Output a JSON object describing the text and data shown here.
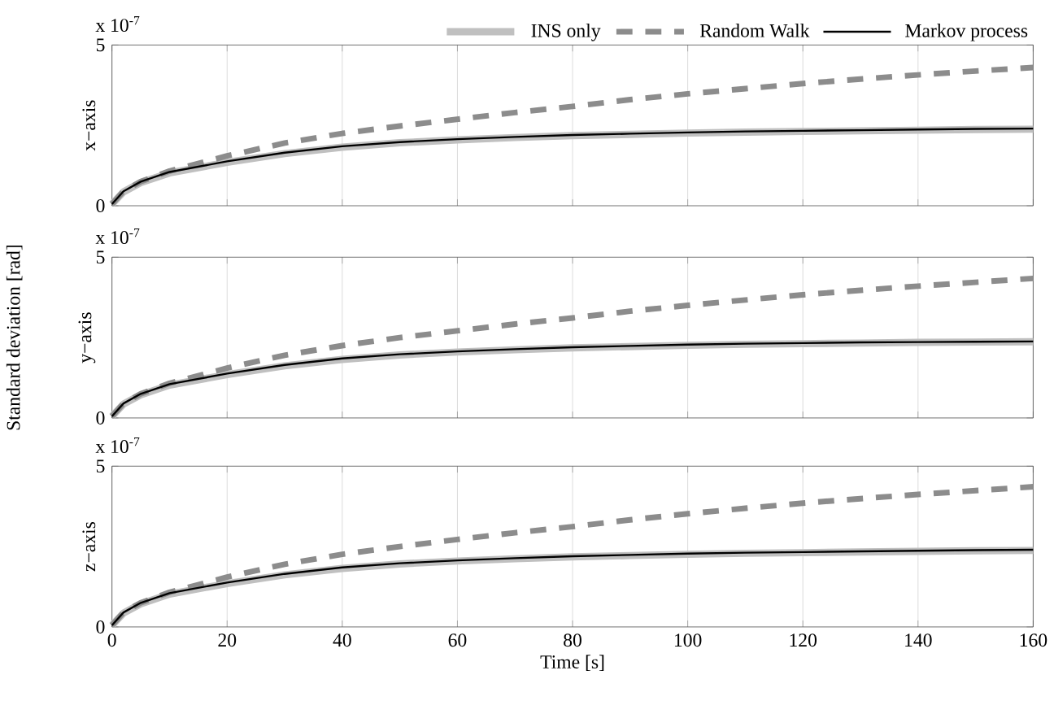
{
  "chart_data": [
    {
      "type": "line",
      "ylabel": "x−axis",
      "annotations": [
        "x 10$^{-7}$"
      ],
      "x": [
        0,
        2,
        5,
        10,
        20,
        30,
        40,
        50,
        60,
        70,
        80,
        90,
        100,
        110,
        120,
        130,
        140,
        150,
        160
      ],
      "xlim": [
        0,
        160
      ],
      "xticks": [
        0,
        20,
        40,
        60,
        80,
        100,
        120,
        140,
        160
      ],
      "ylim": [
        0,
        5
      ],
      "yticks": [
        0,
        5
      ],
      "grid": "x",
      "legend": "top",
      "tick_labels": "y",
      "series": [
        {
          "name": "INS only",
          "color": "#c0c0c0",
          "line_style": "solid",
          "values": [
            0.05,
            0.43,
            0.72,
            1.02,
            1.35,
            1.62,
            1.82,
            1.96,
            2.05,
            2.12,
            2.18,
            2.22,
            2.26,
            2.29,
            2.31,
            2.33,
            2.35,
            2.37,
            2.38
          ]
        },
        {
          "name": "Random Walk",
          "color": "#8c8c8c",
          "line_style": "dashed",
          "values": [
            0.05,
            0.45,
            0.75,
            1.08,
            1.55,
            1.95,
            2.25,
            2.48,
            2.69,
            2.9,
            3.09,
            3.3,
            3.48,
            3.64,
            3.8,
            3.94,
            4.07,
            4.19,
            4.3
          ]
        },
        {
          "name": "Markov process",
          "color": "#000000",
          "line_style": "solid",
          "values": [
            0.05,
            0.45,
            0.75,
            1.05,
            1.38,
            1.65,
            1.85,
            1.98,
            2.07,
            2.14,
            2.2,
            2.24,
            2.28,
            2.31,
            2.33,
            2.35,
            2.37,
            2.39,
            2.4
          ]
        }
      ]
    },
    {
      "type": "line",
      "ylabel": "y−axis",
      "annotations": [
        "x 10$^{-7}$",
        "Standard deviation [rad]"
      ],
      "x": [
        0,
        2,
        5,
        10,
        20,
        30,
        40,
        50,
        60,
        70,
        80,
        90,
        100,
        110,
        120,
        130,
        140,
        150,
        160
      ],
      "xlim": [
        0,
        160
      ],
      "xticks": [
        0,
        20,
        40,
        60,
        80,
        100,
        120,
        140,
        160
      ],
      "ylim": [
        0,
        5
      ],
      "yticks": [
        0,
        5
      ],
      "grid": "x",
      "tick_labels": "y",
      "series": [
        {
          "color": "#c0c0c0",
          "line_style": "solid",
          "values": [
            0.05,
            0.43,
            0.72,
            1.02,
            1.35,
            1.62,
            1.82,
            1.96,
            2.05,
            2.12,
            2.18,
            2.22,
            2.26,
            2.29,
            2.31,
            2.33,
            2.35,
            2.36,
            2.37
          ]
        },
        {
          "color": "#8c8c8c",
          "line_style": "dashed",
          "values": [
            0.05,
            0.45,
            0.75,
            1.08,
            1.55,
            1.95,
            2.25,
            2.5,
            2.71,
            2.92,
            3.11,
            3.32,
            3.5,
            3.67,
            3.83,
            3.97,
            4.1,
            4.22,
            4.34
          ]
        },
        {
          "color": "#000000",
          "line_style": "solid",
          "values": [
            0.05,
            0.45,
            0.75,
            1.05,
            1.38,
            1.65,
            1.85,
            1.98,
            2.07,
            2.14,
            2.2,
            2.24,
            2.28,
            2.31,
            2.33,
            2.35,
            2.36,
            2.37,
            2.38
          ]
        }
      ]
    },
    {
      "type": "line",
      "ylabel": "z−axis",
      "xlabel": "Time [s]",
      "annotations": [
        "x 10$^{-7}$"
      ],
      "x": [
        0,
        2,
        5,
        10,
        20,
        30,
        40,
        50,
        60,
        70,
        80,
        90,
        100,
        110,
        120,
        130,
        140,
        150,
        160
      ],
      "xlim": [
        0,
        160
      ],
      "xticks": [
        0,
        20,
        40,
        60,
        80,
        100,
        120,
        140,
        160
      ],
      "ylim": [
        0,
        5
      ],
      "yticks": [
        0,
        5
      ],
      "grid": "x",
      "series": [
        {
          "color": "#c0c0c0",
          "line_style": "solid",
          "values": [
            0.05,
            0.43,
            0.72,
            1.02,
            1.35,
            1.62,
            1.82,
            1.96,
            2.05,
            2.12,
            2.18,
            2.22,
            2.26,
            2.29,
            2.31,
            2.33,
            2.35,
            2.37,
            2.38
          ]
        },
        {
          "color": "#8c8c8c",
          "line_style": "dashed",
          "values": [
            0.05,
            0.45,
            0.75,
            1.08,
            1.55,
            1.95,
            2.26,
            2.5,
            2.72,
            2.93,
            3.12,
            3.33,
            3.52,
            3.69,
            3.85,
            3.99,
            4.12,
            4.24,
            4.36
          ]
        },
        {
          "color": "#000000",
          "line_style": "solid",
          "values": [
            0.05,
            0.45,
            0.75,
            1.05,
            1.38,
            1.65,
            1.85,
            1.98,
            2.07,
            2.14,
            2.2,
            2.24,
            2.28,
            2.31,
            2.33,
            2.35,
            2.37,
            2.39,
            2.4
          ]
        }
      ]
    }
  ]
}
